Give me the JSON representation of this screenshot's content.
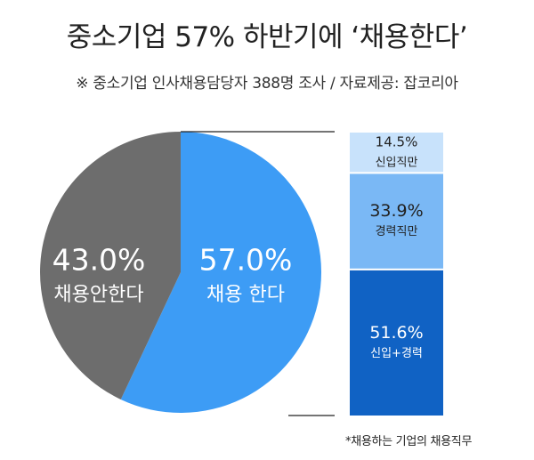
{
  "title": "중소기업 57% 하반기에 ‘채용한다’",
  "subtitle": "※ 중소기업 인사채용담당자 388명 조사 / 자료제공: 잡코리아",
  "footnote": "*채용하는 기업의 채용직무",
  "colors": {
    "pie_yes": "#3d9cf5",
    "pie_no": "#6d6d6d",
    "bar_new": "#c8e2fb",
    "bar_exp": "#7ab8f5",
    "bar_both": "#1062c4",
    "connector": "#222222"
  },
  "chart_data": [
    {
      "type": "pie",
      "slices": [
        {
          "label": "채용 한다",
          "value": 57.0,
          "value_label": "57.0%"
        },
        {
          "label": "채용안한다",
          "value": 43.0,
          "value_label": "43.0%"
        }
      ]
    },
    {
      "type": "bar",
      "stacked": true,
      "note": "채용하는 기업의 채용직무",
      "categories": [
        "신입직만",
        "경력직만",
        "신입+경력"
      ],
      "values": [
        14.5,
        33.9,
        51.6
      ],
      "value_labels": [
        "14.5%",
        "33.9%",
        "51.6%"
      ]
    }
  ]
}
